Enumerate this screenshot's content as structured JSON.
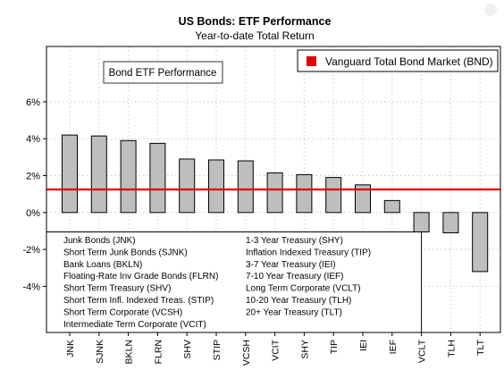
{
  "chart_data": {
    "type": "bar",
    "title": "US Bonds: ETF Performance",
    "subtitle": "Year-to-date Total Return",
    "inset_label": "Bond ETF Performance",
    "categories": [
      "JNK",
      "SJNK",
      "BKLN",
      "FLRN",
      "SHV",
      "STIP",
      "VCSH",
      "VCIT",
      "SHY",
      "TIP",
      "IEI",
      "IEF",
      "VCLT",
      "TLH",
      "TLT"
    ],
    "values": [
      4.2,
      4.15,
      3.9,
      3.75,
      2.9,
      2.85,
      2.8,
      2.15,
      2.05,
      1.9,
      1.5,
      0.65,
      -1.05,
      -1.1,
      -3.2
    ],
    "ylim": [
      -6.5,
      9
    ],
    "y_ticks": [
      -4,
      -2,
      0,
      2,
      4,
      6
    ],
    "y_tick_labels": [
      "-4%",
      "-2%",
      "0%",
      "2%",
      "4%",
      "6%"
    ],
    "grid": true,
    "bar_color": "#bebebe",
    "reference_line": {
      "value": 1.25,
      "label": "Vanguard Total Bond Market (BND)",
      "color": "#e00000"
    },
    "legend_placement": "top-right",
    "key_left": [
      "Junk Bonds (JNK)",
      "Short Term Junk Bonds (SJNK)",
      "Bank Loans (BKLN)",
      "Floating-Rate Inv Grade Bonds (FLRN)",
      "Short Term Treasury (SHV)",
      "Short Term Infl. Indexed Treas. (STIP)",
      "Short Term Corporate (VCSH)",
      "Intermediate Term Corporate (VCIT)"
    ],
    "key_right": [
      "1-3 Year Treasury (SHY)",
      "Inflation Indexed Treasury (TIP)",
      "3-7 Year Treasury (IEI)",
      "7-10 Year Treasury (IEF)",
      "Long Term Corporate (VCLT)",
      "10-20 Year Treasury (TLH)",
      "20+ Year Treasury (TLT)"
    ]
  }
}
